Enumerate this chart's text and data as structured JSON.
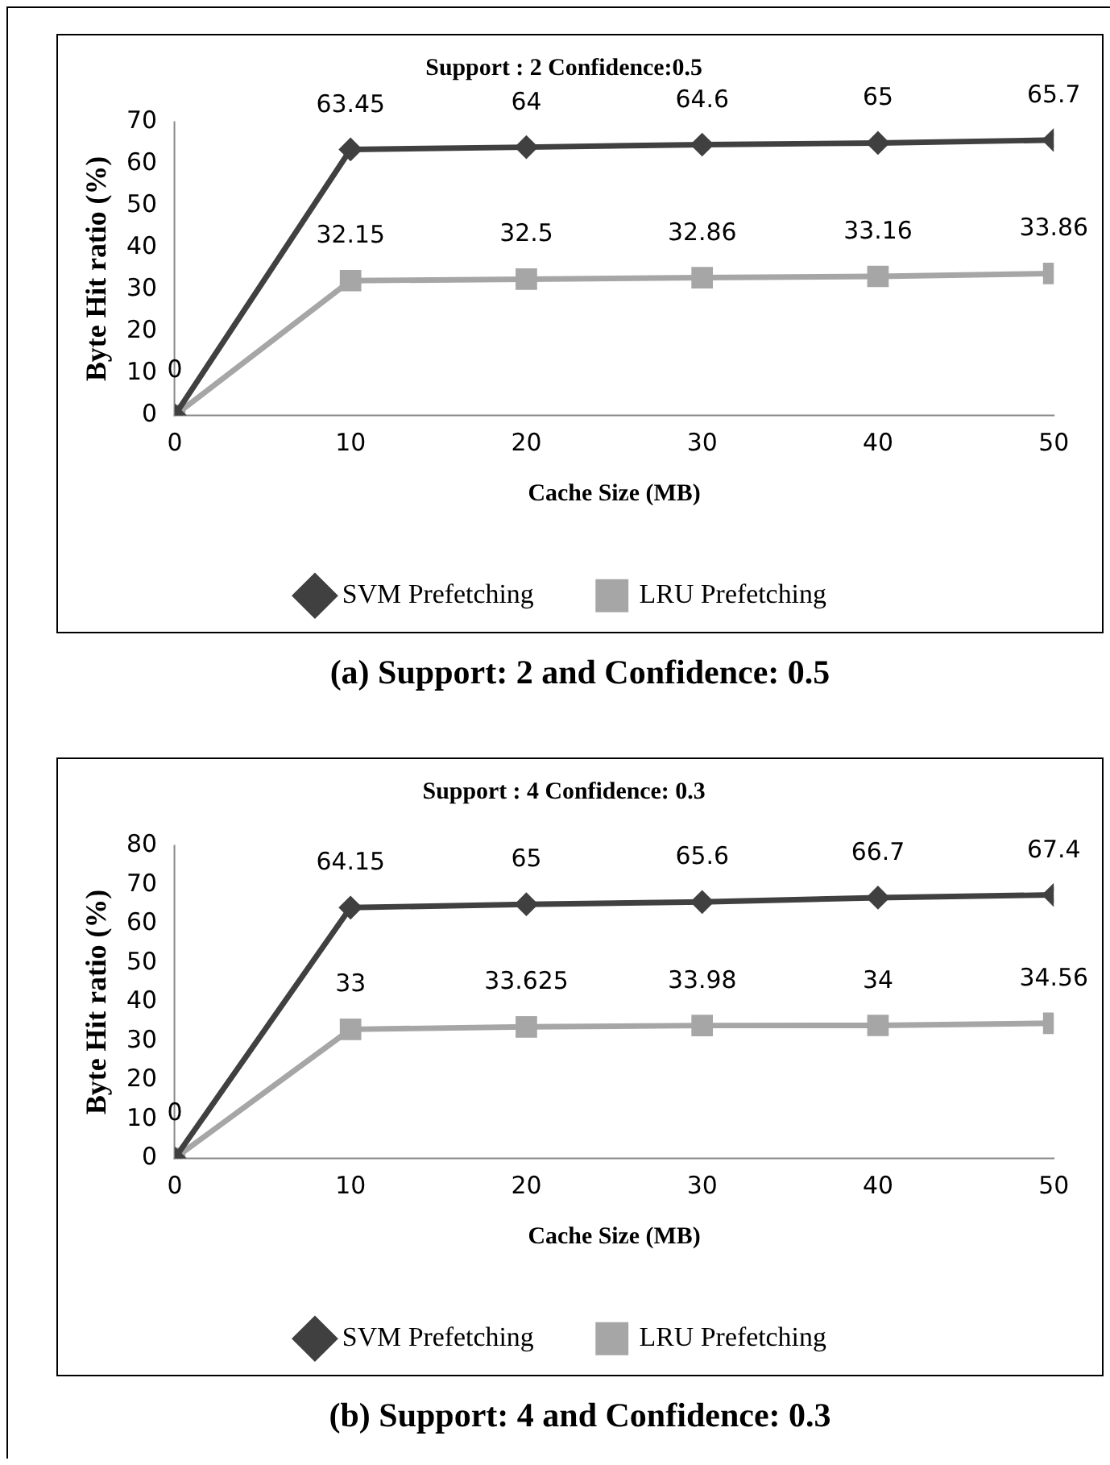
{
  "chart_data": [
    {
      "type": "line",
      "title": "Support : 2 Confidence:0.5",
      "xlabel": "Cache Size (MB)",
      "ylabel": "Byte Hit ratio (%)",
      "x": [
        0,
        10,
        20,
        30,
        40,
        50
      ],
      "series": [
        {
          "name": "SVM Prefetching",
          "color": "#404040",
          "marker": "diamond",
          "values": [
            0,
            63.45,
            64,
            64.6,
            65,
            65.7
          ],
          "value_labels": [
            "0",
            "63.45",
            "64",
            "64.6",
            "65",
            "65.7"
          ]
        },
        {
          "name": "LRU Prefetching",
          "color": "#a6a6a6",
          "marker": "square",
          "values": [
            0,
            32.15,
            32.5,
            32.86,
            33.16,
            33.86
          ],
          "value_labels": [
            null,
            "32.15",
            "32.5",
            "32.86",
            "33.16",
            "33.86"
          ]
        }
      ],
      "xlim": [
        0,
        50
      ],
      "xticks": [
        0,
        10,
        20,
        30,
        40,
        50
      ],
      "ylim": [
        0,
        70
      ],
      "yticks": [
        0,
        10,
        20,
        30,
        40,
        50,
        60,
        70
      ],
      "grid": false,
      "legend": "bottom",
      "annotations": [
        "(a) Support: 2 and Confidence: 0.5"
      ]
    },
    {
      "type": "line",
      "title": "Support : 4 Confidence: 0.3",
      "xlabel": "Cache Size (MB)",
      "ylabel": "Byte Hit ratio (%)",
      "x": [
        0,
        10,
        20,
        30,
        40,
        50
      ],
      "series": [
        {
          "name": "SVM Prefetching",
          "color": "#404040",
          "marker": "diamond",
          "values": [
            0,
            64.15,
            65,
            65.6,
            66.7,
            67.4
          ],
          "value_labels": [
            "0",
            "64.15",
            "65",
            "65.6",
            "66.7",
            "67.4"
          ]
        },
        {
          "name": "LRU Prefetching",
          "color": "#a6a6a6",
          "marker": "square",
          "values": [
            0,
            33,
            33.625,
            33.98,
            34,
            34.56
          ],
          "value_labels": [
            null,
            "33",
            "33.625",
            "33.98",
            "34",
            "34.56"
          ]
        }
      ],
      "xlim": [
        0,
        50
      ],
      "xticks": [
        0,
        10,
        20,
        30,
        40,
        50
      ],
      "ylim": [
        0,
        80
      ],
      "yticks": [
        0,
        10,
        20,
        30,
        40,
        50,
        60,
        70,
        80
      ],
      "grid": false,
      "legend": "bottom",
      "annotations": [
        "(b) Support: 4 and Confidence: 0.3"
      ]
    }
  ]
}
